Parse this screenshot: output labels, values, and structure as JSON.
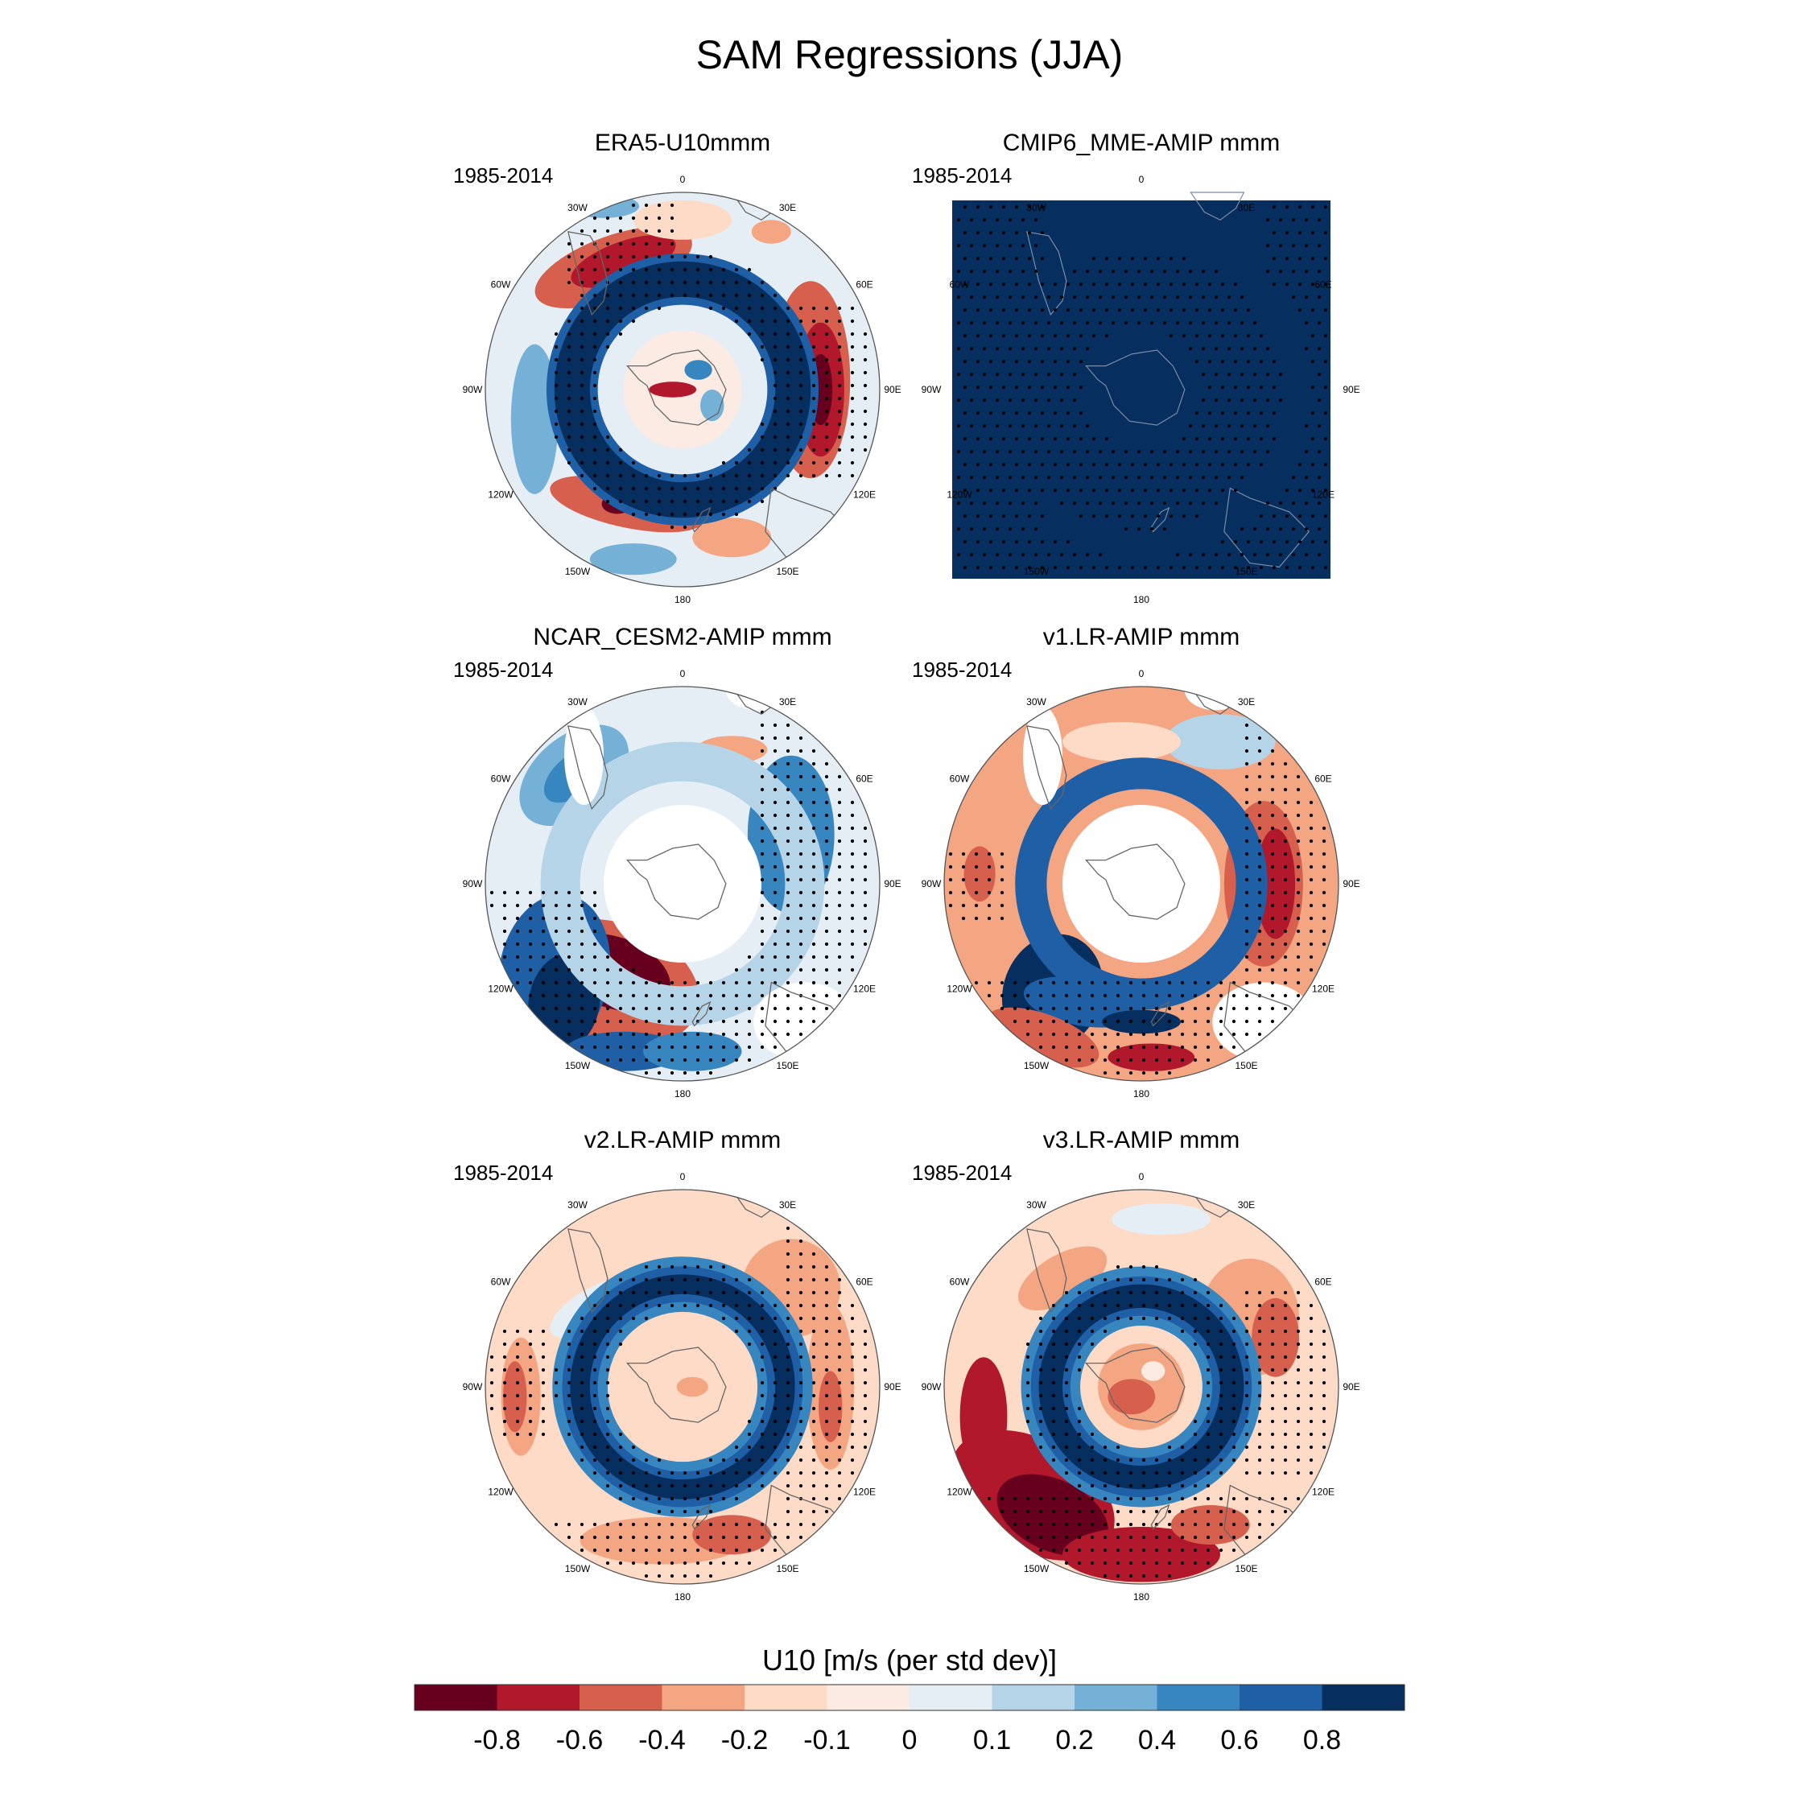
{
  "figure": {
    "title": "SAM Regressions (JJA)",
    "colorbar": {
      "title": "U10 [m/s (per std dev)]",
      "tick_labels": [
        "-0.8",
        "-0.6",
        "-0.4",
        "-0.2",
        "-0.1",
        "0",
        "0.1",
        "0.2",
        "0.4",
        "0.6",
        "0.8"
      ],
      "colors": [
        "#67001f",
        "#b2182b",
        "#d6604d",
        "#f4a582",
        "#fddbc7",
        "#fbebe3",
        "#e6eef5",
        "#b6d4e7",
        "#75b0d6",
        "#3886c0",
        "#1f5fa6",
        "#062f5f"
      ]
    },
    "panels": [
      {
        "id": "era5",
        "title": "ERA5-U10mmm",
        "period": "1985-2014",
        "style": "era5",
        "mask_center": false,
        "square": false
      },
      {
        "id": "cmip6",
        "title": "CMIP6_MME-AMIP  mmm",
        "period": "1985-2014",
        "style": "cmip6",
        "mask_center": false,
        "square": true
      },
      {
        "id": "cesm2",
        "title": "NCAR_CESM2-AMIP  mmm",
        "period": "1985-2014",
        "style": "cesm2",
        "mask_center": true,
        "square": false
      },
      {
        "id": "v1",
        "title": "v1.LR-AMIP  mmm",
        "period": "1985-2014",
        "style": "v1",
        "mask_center": true,
        "square": false
      },
      {
        "id": "v2",
        "title": "v2.LR-AMIP  mmm",
        "period": "1985-2014",
        "style": "v2",
        "mask_center": false,
        "square": false
      },
      {
        "id": "v3",
        "title": "v3.LR-AMIP  mmm",
        "period": "1985-2014",
        "style": "v3",
        "mask_center": false,
        "square": false
      }
    ],
    "longitude_labels": [
      "0",
      "30E",
      "60E",
      "90E",
      "120E",
      "150E",
      "180",
      "150W",
      "120W",
      "90W",
      "60W",
      "30W"
    ]
  }
}
